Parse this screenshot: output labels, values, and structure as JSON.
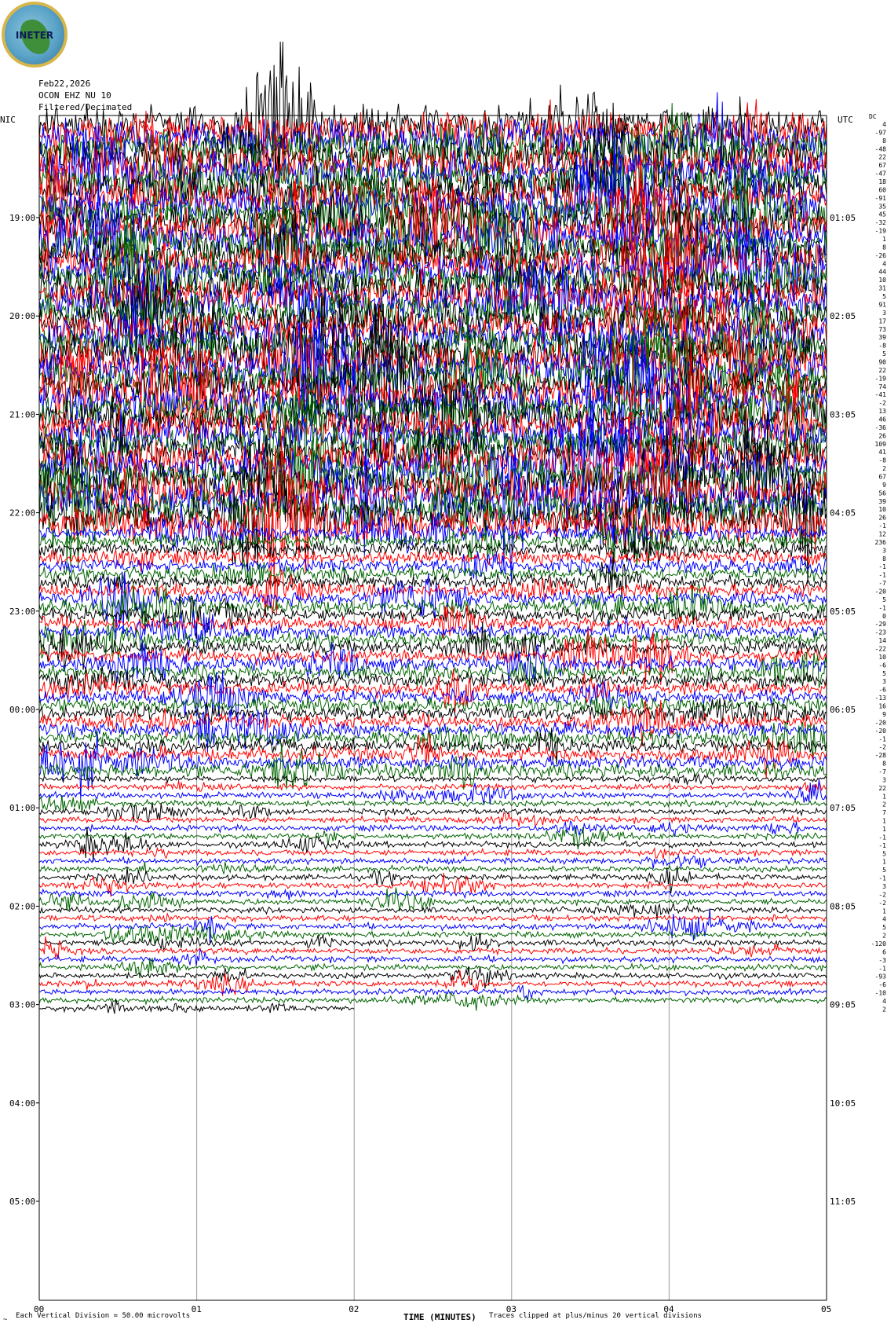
{
  "logo": {
    "text": "INETER"
  },
  "header": {
    "date": "Feb22,2026",
    "station": "OCON EHZ NU 10",
    "extra": "Filtered/Decimated"
  },
  "left_zone_label": "NIC",
  "right_zone_label": "UTC",
  "dc_label": "DC",
  "footer": {
    "scale_note": "Each Vertical Division =   50.00 microvolts",
    "clip_note": "Traces clipped at plus/minus 20 vertical divisions",
    "corner_mark": "~"
  },
  "colors": {
    "black": "#000000",
    "red": "#ff0000",
    "blue": "#0000ff",
    "green": "#006400",
    "grid": "#9a9a9a"
  },
  "chart_data": {
    "type": "seismogram",
    "xlabel": "TIME (MINUTES)",
    "x_ticks": [
      "00",
      "01",
      "02",
      "03",
      "04",
      "05"
    ],
    "xlim": [
      0,
      5
    ],
    "left_hour_labels": [
      "19:00",
      "20:00",
      "21:00",
      "22:00",
      "23:00",
      "00:00",
      "01:00",
      "02:00",
      "03:00",
      "04:00",
      "05:00"
    ],
    "right_hour_labels": [
      "01:05",
      "02:05",
      "03:05",
      "04:05",
      "05:05",
      "06:05",
      "07:05",
      "08:05",
      "09:05",
      "10:05",
      "11:05"
    ],
    "trace_minutes": 5,
    "trace_color_cycle": [
      "black",
      "red",
      "blue",
      "green"
    ],
    "dc_offsets": [
      4,
      -97,
      8,
      -48,
      22,
      67,
      -47,
      18,
      60,
      -91,
      35,
      45,
      -32,
      -19,
      1,
      8,
      -26,
      4,
      44,
      10,
      31,
      5,
      91,
      3,
      17,
      73,
      39,
      -8,
      5,
      90,
      22,
      -19,
      74,
      -41,
      -2,
      13,
      46,
      -36,
      26,
      109,
      41,
      -8,
      2,
      67,
      9,
      56,
      39,
      10,
      26,
      -1,
      12,
      236,
      3,
      8,
      -1,
      -1,
      -7,
      -20,
      5,
      -1,
      0,
      -29,
      -23,
      14,
      -22,
      10,
      -6,
      5,
      3,
      -6,
      -13,
      16,
      9,
      -20,
      -20,
      -1,
      -2,
      -28,
      8,
      -7,
      3,
      22,
      1,
      2,
      7,
      1,
      1,
      -1,
      -1,
      5,
      1,
      5,
      -1,
      3,
      -2,
      -2,
      1,
      4,
      5,
      2,
      -120,
      6,
      -3,
      -1,
      -93,
      -6,
      -10,
      4,
      2
    ],
    "activity_envelope": [
      {
        "from_trace": 0,
        "to_trace": 50,
        "level": "very high"
      },
      {
        "from_trace": 50,
        "to_trace": 80,
        "level": "high"
      },
      {
        "from_trace": 80,
        "to_trace": 109,
        "level": "moderate"
      }
    ]
  }
}
